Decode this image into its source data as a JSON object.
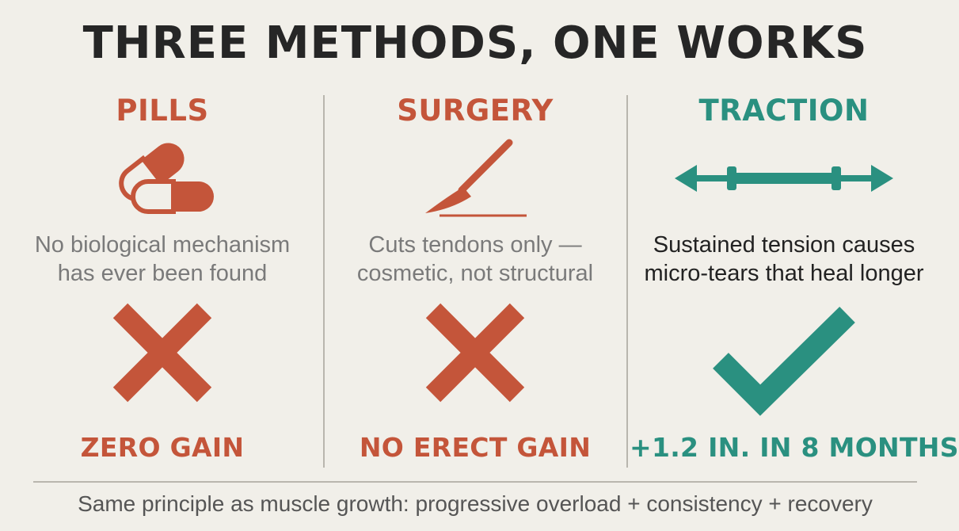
{
  "title": "THREE METHODS, ONE WORKS",
  "colors": {
    "bad": "#c4553a",
    "good": "#2a9080",
    "text_dark": "#262626",
    "text_muted": "#7a7a7a",
    "background": "#f1efe9"
  },
  "columns": [
    {
      "heading": "PILLS",
      "icon": "pill-capsules-icon",
      "description": [
        "No biological mechanism",
        "has ever been found"
      ],
      "verdict_icon": "cross-icon",
      "result": "ZERO GAIN"
    },
    {
      "heading": "SURGERY",
      "icon": "scalpel-icon",
      "description": [
        "Cuts tendons only —",
        "cosmetic, not structural"
      ],
      "verdict_icon": "cross-icon",
      "result": "NO ERECT GAIN"
    },
    {
      "heading": "TRACTION",
      "icon": "traction-arrows-icon",
      "description": [
        "Sustained tension causes",
        "micro-tears that heal longer"
      ],
      "verdict_icon": "checkmark-icon",
      "result": "+1.2 IN. IN 8 MONTHS"
    }
  ],
  "footer": "Same principle as muscle growth: progressive overload + consistency + recovery"
}
